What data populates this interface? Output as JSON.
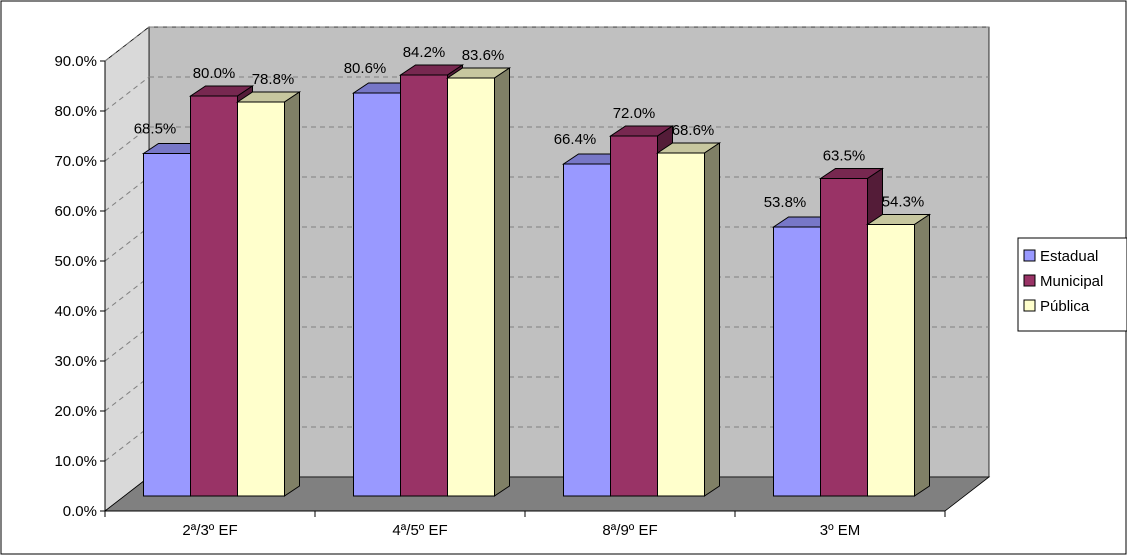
{
  "chart_data": {
    "type": "bar",
    "categories": [
      "2ª/3º EF",
      "4ª/5º EF",
      "8ª/9º EF",
      "3º EM"
    ],
    "series": [
      {
        "name": "Estadual",
        "values": [
          68.5,
          80.6,
          66.4,
          53.8
        ],
        "labels": [
          "68.5%",
          "80.6%",
          "66.4%",
          "53.8%"
        ],
        "color": "#9999ff"
      },
      {
        "name": "Municipal",
        "values": [
          80.0,
          84.2,
          72.0,
          63.5
        ],
        "labels": [
          "80.0%",
          "84.2%",
          "72.0%",
          "63.5%"
        ],
        "color": "#993366"
      },
      {
        "name": "Pública",
        "values": [
          78.8,
          83.6,
          68.6,
          54.3
        ],
        "labels": [
          "78.8%",
          "83.6%",
          "68.6%",
          "54.3%"
        ],
        "color": "#ffffcc"
      }
    ],
    "y_ticks": [
      "0.0%",
      "10.0%",
      "20.0%",
      "30.0%",
      "40.0%",
      "50.0%",
      "60.0%",
      "70.0%",
      "80.0%",
      "90.0%"
    ],
    "ylim": [
      0,
      90
    ],
    "grid": true,
    "legend_position": "right",
    "title": "",
    "xlabel": "",
    "ylabel": "",
    "colors": {
      "wall": "#c0c0c0",
      "floor": "#808080",
      "side_wall": "#d9d9d9",
      "grid": "#808080",
      "bar_side": "#808066"
    }
  }
}
